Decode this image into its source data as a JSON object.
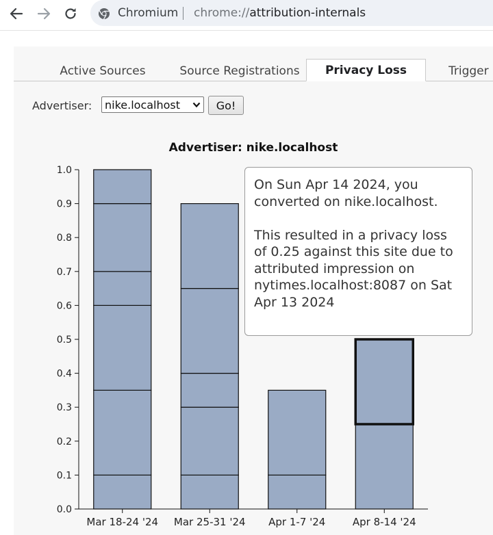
{
  "browser": {
    "name": "Chromium",
    "url_scheme": "chrome://",
    "url_host": "attribution-internals"
  },
  "tabs": [
    {
      "label": "Active Sources",
      "active": false
    },
    {
      "label": "Source Registrations",
      "active": false
    },
    {
      "label": "Privacy Loss",
      "active": true
    },
    {
      "label": "Trigger",
      "active": false
    }
  ],
  "advertiser": {
    "label": "Advertiser:",
    "selected": "nike.localhost",
    "go_label": "Go!"
  },
  "chart_data": {
    "type": "bar",
    "stacked": true,
    "title": "Advertiser: nike.localhost",
    "categories": [
      "Mar 18-24 '24",
      "Mar 25-31 '24",
      "Apr 1-7 '24",
      "Apr 8-14 '24"
    ],
    "segments": [
      [
        0.1,
        0.25,
        0.25,
        0.1,
        0.2,
        0.1
      ],
      [
        0.1,
        0.2,
        0.1,
        0.25,
        0.25
      ],
      [
        0.1,
        0.25
      ],
      [
        0.25,
        0.25
      ]
    ],
    "totals": [
      1.0,
      0.9,
      0.35,
      0.5
    ],
    "highlighted": {
      "category": 3,
      "segment": 1
    },
    "y_ticks": [
      "0.0",
      "0.1",
      "0.2",
      "0.3",
      "0.4",
      "0.5",
      "0.6",
      "0.7",
      "0.8",
      "0.9",
      "1.0"
    ],
    "ylim": [
      0,
      1.0
    ],
    "bar_color": "#9aabc5",
    "grid": false
  },
  "tooltip": {
    "line1": "On Sun Apr 14 2024, you converted on nike.localhost.",
    "line2": "This resulted in a privacy loss of 0.25 against this site due to attributed impression on nytimes.localhost:8087 on Sat Apr 13 2024"
  }
}
